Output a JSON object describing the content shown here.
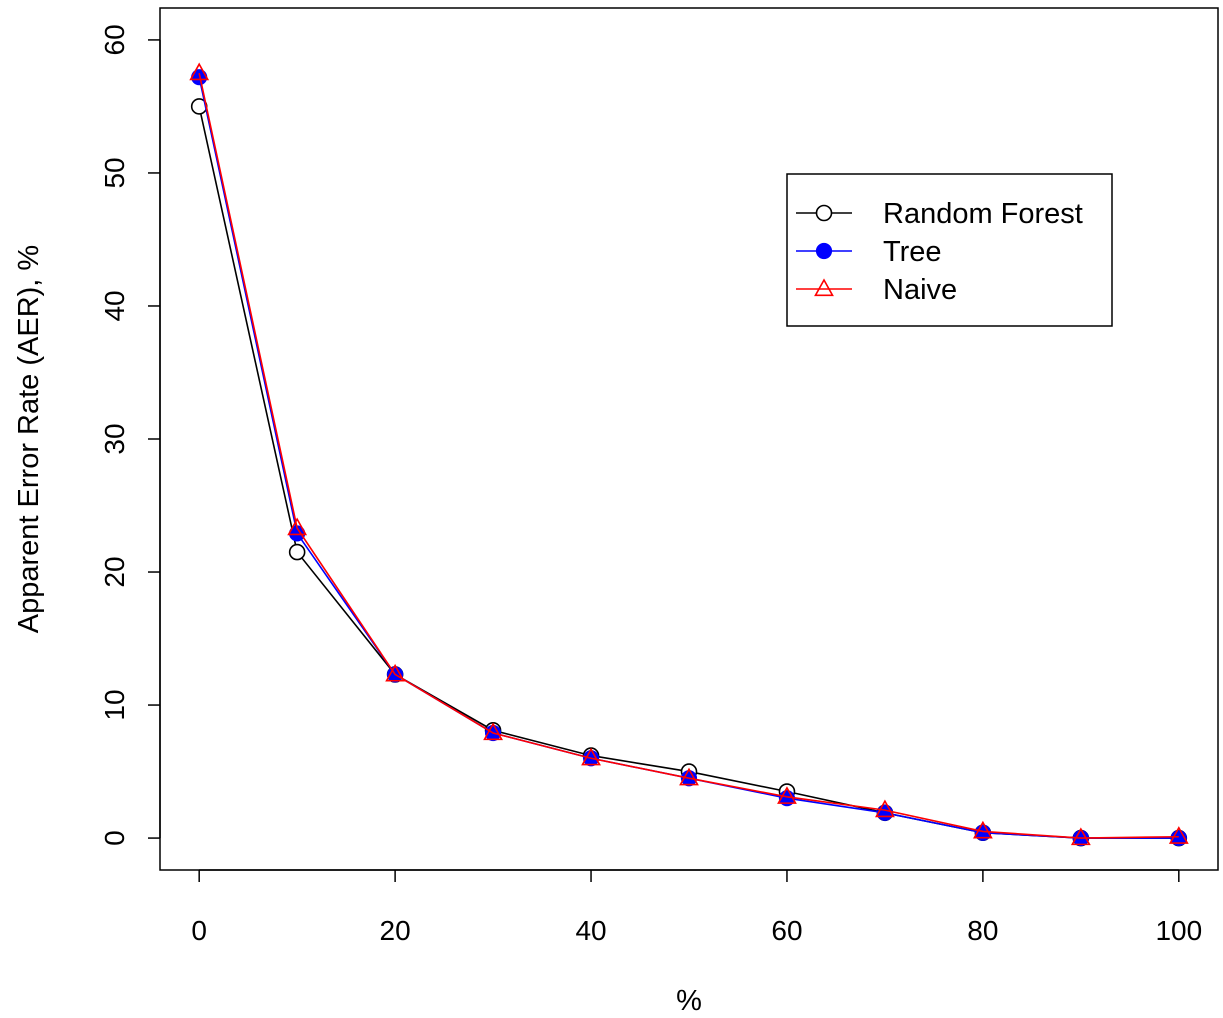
{
  "chart_data": {
    "type": "line",
    "title": "",
    "xlabel": "%",
    "ylabel": "Apparent Error Rate (AER), %",
    "x": [
      0,
      10,
      20,
      30,
      40,
      50,
      60,
      70,
      80,
      90,
      100
    ],
    "xlim": [
      -4,
      104
    ],
    "ylim": [
      -2.4,
      62.4
    ],
    "xticks": [
      0,
      20,
      40,
      60,
      80,
      100
    ],
    "yticks": [
      0,
      10,
      20,
      30,
      40,
      50,
      60
    ],
    "grid": false,
    "legend_position": "top-right",
    "series": [
      {
        "name": "Random Forest",
        "color": "#000000",
        "marker": "open-circle",
        "values": [
          55.0,
          21.5,
          12.3,
          8.1,
          6.2,
          5.0,
          3.5,
          1.9,
          0.4,
          0.0,
          0.0
        ]
      },
      {
        "name": "Tree",
        "color": "#0000ff",
        "marker": "filled-circle",
        "values": [
          57.2,
          22.9,
          12.3,
          7.9,
          6.0,
          4.5,
          3.0,
          1.9,
          0.4,
          0.0,
          0.0
        ]
      },
      {
        "name": "Naive",
        "color": "#ff0000",
        "marker": "open-triangle",
        "values": [
          57.5,
          23.3,
          12.3,
          7.9,
          6.0,
          4.5,
          3.1,
          2.1,
          0.5,
          0.0,
          0.1
        ]
      }
    ]
  }
}
